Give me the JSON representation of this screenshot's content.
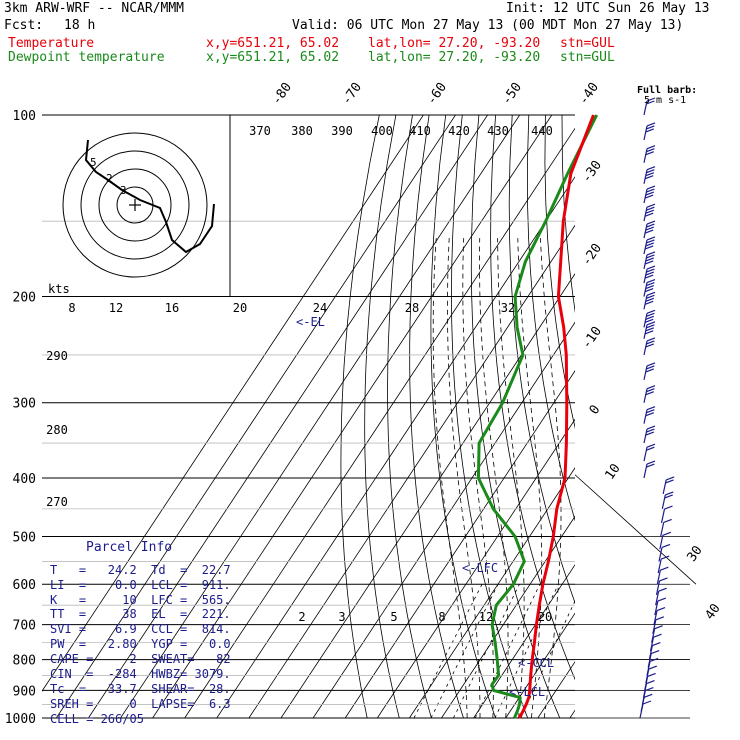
{
  "header": {
    "model": "3km ARW-WRF -- NCAR/MMM",
    "init": "Init: 12 UTC Sun 26 May 13",
    "fcst_label": "Fcst:",
    "fcst_value": "18 h",
    "valid": "Valid: 06 UTC Mon 27 May 13 (00 MDT Mon 27 May 13)",
    "temp_label": "Temperature",
    "dew_label": "Dewpoint temperature",
    "xy_text": "x,y=651.21, 65.02",
    "latlon_text": "lat,lon= 27.20, -93.20",
    "stn_text": "stn=GUL"
  },
  "colors": {
    "temperature": "#e8000a",
    "dewpoint": "#1a8a1a",
    "info": "#1c1c8c",
    "wind": "#1c1c8c"
  },
  "barb_legend": {
    "line1": "Full barb:",
    "line2": "5 m s-1"
  },
  "hodograph": {
    "units_label": "kts",
    "speed_labels": [
      "8",
      "12",
      "16",
      "20",
      "24",
      "28",
      "32"
    ],
    "ring_labels": [
      "5",
      "2",
      "3"
    ]
  },
  "theta_labels": [
    "370",
    "380",
    "390",
    "400",
    "410",
    "420",
    "430",
    "440"
  ],
  "theta_side_labels": [
    "290",
    "280",
    "270"
  ],
  "temp_labels_top": [
    "-80",
    "-70",
    "-60",
    "-50",
    "-40"
  ],
  "temp_labels_right": [
    "-30",
    "-20",
    "-10",
    "0",
    "10",
    "30",
    "40"
  ],
  "mixing_ratio_labels": [
    "2",
    "3",
    "5",
    "8",
    "12",
    "20"
  ],
  "levels": {
    "el": "<-EL",
    "lfc": "<-LFC",
    "ccl": "<-CCL",
    "lcl": "<-LCL"
  },
  "parcel_info": {
    "title": "Parcel Info",
    "rows": [
      "T   =   24.2  Td  =  22.7",
      "LI  =    0.0  LCL =  911.",
      "K   =     10  LFC =  565.",
      "TT  =     38  EL  =  221.",
      "SVI =    6.9  CCL =  814.",
      "PW  =   2.80  YGP =   0.0",
      "CAPE =     2  SWEAT=   82",
      "CIN  =  -284  HWBZ= 3079.",
      "Tc  =   33.7  SHEAR=  28.",
      "SREH =     0  LAPSE=  6.3",
      "CELL = 266/05"
    ]
  },
  "chart_data": {
    "type": "line",
    "title": "",
    "y_axis": "pressure (hPa), logarithmic, reversed",
    "ylim": [
      1000,
      100
    ],
    "pressure_ticks": [
      "100",
      "200",
      "300",
      "400",
      "500",
      "600",
      "700",
      "800",
      "900",
      "1000"
    ],
    "x_axis": "temperature (C), skewed isotherms",
    "series": [
      {
        "name": "Temperature",
        "p": [
          1000,
          975,
          950,
          925,
          900,
          850,
          800,
          750,
          700,
          650,
          600,
          550,
          500,
          450,
          400,
          350,
          300,
          250,
          225,
          200,
          175,
          150,
          125,
          100
        ],
        "t": [
          24.2,
          24.0,
          23.6,
          23.0,
          21.8,
          19.0,
          16.2,
          13.4,
          10.3,
          7.2,
          4.0,
          1.0,
          -2.6,
          -7.2,
          -11.0,
          -17.8,
          -26.0,
          -36.0,
          -42.5,
          -50.5,
          -57.0,
          -64.5,
          -72.0,
          -77.0
        ]
      },
      {
        "name": "Dewpoint temperature",
        "p": [
          1000,
          975,
          950,
          925,
          900,
          880,
          850,
          800,
          750,
          700,
          650,
          600,
          550,
          500,
          450,
          400,
          350,
          300,
          250,
          225,
          200,
          175,
          150,
          125,
          100
        ],
        "td": [
          22.7,
          22.2,
          21.5,
          20.3,
          10.5,
          8.8,
          9.0,
          5.3,
          1.2,
          -3.5,
          -6.2,
          -5.2,
          -6.5,
          -14.5,
          -27.0,
          -38.0,
          -45.0,
          -46.0,
          -49.5,
          -57.0,
          -64.0,
          -68.0,
          -70.0,
          -73.0,
          -76.0
        ]
      }
    ],
    "wind_barbs": {
      "p": [
        1000,
        975,
        950,
        925,
        900,
        875,
        850,
        825,
        800,
        775,
        750,
        725,
        700,
        675,
        650,
        625,
        600,
        575,
        550,
        525,
        500,
        475,
        450,
        425,
        400,
        375,
        350,
        325,
        300,
        275,
        250,
        235,
        225,
        210,
        200,
        190,
        180,
        170,
        160,
        150,
        140,
        130,
        120,
        110,
        100
      ],
      "speed_barbs": [
        1,
        1,
        1,
        1,
        1,
        1,
        1,
        1,
        1,
        1,
        1,
        1,
        1,
        1,
        1,
        1,
        1,
        1,
        1,
        1,
        1,
        1,
        2,
        2,
        2,
        2,
        3,
        3,
        3,
        3,
        3,
        4,
        4,
        4,
        4,
        4,
        4,
        4,
        4,
        4,
        4,
        4,
        3,
        3,
        2
      ],
      "note": "full barb = 5 m/s"
    }
  }
}
